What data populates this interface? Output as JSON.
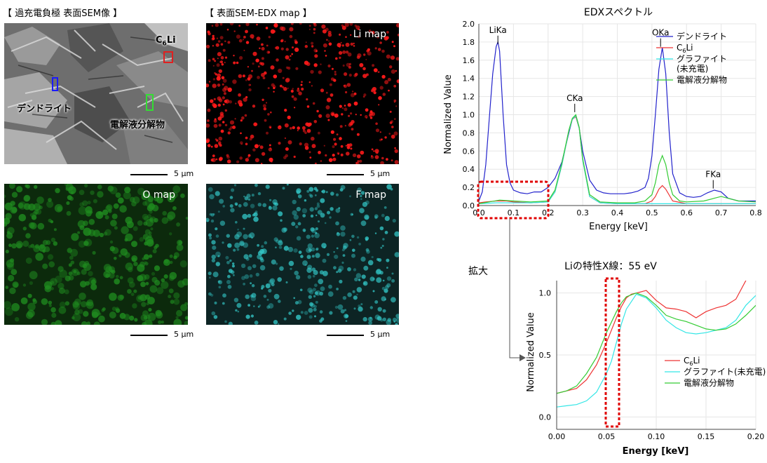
{
  "sem_panel": {
    "heading": "【 過充電負極  表面SEM像 】",
    "labels": {
      "c6li": "C6Li",
      "dendrite": "デンドライト",
      "electrolyte": "電解液分解物"
    },
    "marker_colors": {
      "c6li": "#e02020",
      "dendrite": "#1a1aff",
      "electrolyte": "#33dd33"
    }
  },
  "edx_heading": "【 表面SEM-EDX map 】",
  "maps": {
    "li": {
      "label": "Li map",
      "color": "#ff1a1a"
    },
    "o": {
      "label": "O map",
      "color": "#1f8a1f"
    },
    "f": {
      "label": "F map",
      "color": "#33c8c8"
    }
  },
  "scale_text": "5 µm",
  "magnify_label": "拡大",
  "chart_data": [
    {
      "type": "line",
      "title": "EDXスペクトル",
      "xlabel": "Energy [keV]",
      "ylabel": "Normalized Value",
      "xlim": [
        0.0,
        0.8
      ],
      "ylim": [
        0.0,
        2.0
      ],
      "xticks": [
        "0.0",
        "0.1",
        "0.2",
        "0.3",
        "0.4",
        "0.5",
        "0.6",
        "0.7",
        "0.8"
      ],
      "yticks": [
        "0.0",
        "0.2",
        "0.4",
        "0.6",
        "0.8",
        "1.0",
        "1.2",
        "1.4",
        "1.6",
        "1.8",
        "2.0"
      ],
      "grid": true,
      "legend_position": "top-right",
      "annotations": [
        {
          "text": "LiKa",
          "x": 0.055,
          "y": 1.77
        },
        {
          "text": "CKa",
          "x": 0.277,
          "y": 1.02
        },
        {
          "text": "OKa",
          "x": 0.525,
          "y": 1.74
        },
        {
          "text": "FKa",
          "x": 0.677,
          "y": 0.18
        }
      ],
      "series": [
        {
          "name": "デンドライト",
          "color": "#2222cc",
          "x": [
            0.0,
            0.01,
            0.02,
            0.03,
            0.04,
            0.05,
            0.055,
            0.06,
            0.07,
            0.08,
            0.09,
            0.1,
            0.12,
            0.14,
            0.16,
            0.18,
            0.2,
            0.22,
            0.24,
            0.26,
            0.27,
            0.28,
            0.29,
            0.3,
            0.32,
            0.34,
            0.36,
            0.38,
            0.4,
            0.42,
            0.44,
            0.46,
            0.48,
            0.49,
            0.5,
            0.51,
            0.52,
            0.53,
            0.54,
            0.55,
            0.56,
            0.58,
            0.6,
            0.62,
            0.64,
            0.66,
            0.68,
            0.7,
            0.72,
            0.75,
            0.8
          ],
          "y": [
            0.05,
            0.15,
            0.45,
            0.95,
            1.45,
            1.75,
            1.8,
            1.7,
            1.0,
            0.45,
            0.25,
            0.17,
            0.14,
            0.13,
            0.15,
            0.15,
            0.2,
            0.3,
            0.48,
            0.8,
            0.95,
            0.98,
            0.85,
            0.6,
            0.28,
            0.17,
            0.14,
            0.13,
            0.13,
            0.13,
            0.14,
            0.16,
            0.2,
            0.3,
            0.55,
            1.0,
            1.5,
            1.74,
            1.45,
            0.8,
            0.35,
            0.14,
            0.1,
            0.09,
            0.1,
            0.14,
            0.17,
            0.15,
            0.08,
            0.05,
            0.05
          ]
        },
        {
          "name": "C6Li",
          "color": "#ee3333",
          "x": [
            0.0,
            0.02,
            0.05,
            0.08,
            0.1,
            0.15,
            0.2,
            0.22,
            0.24,
            0.26,
            0.27,
            0.28,
            0.29,
            0.3,
            0.32,
            0.35,
            0.4,
            0.45,
            0.48,
            0.5,
            0.51,
            0.52,
            0.53,
            0.54,
            0.56,
            0.6,
            0.7,
            0.8
          ],
          "y": [
            0.03,
            0.04,
            0.05,
            0.05,
            0.04,
            0.03,
            0.04,
            0.15,
            0.45,
            0.82,
            0.95,
            0.98,
            0.85,
            0.5,
            0.1,
            0.03,
            0.02,
            0.02,
            0.02,
            0.05,
            0.1,
            0.18,
            0.22,
            0.18,
            0.05,
            0.02,
            0.02,
            0.02
          ]
        },
        {
          "name": "グラファイト\n(未充電)",
          "color": "#33e6e6",
          "x": [
            0.0,
            0.05,
            0.1,
            0.15,
            0.2,
            0.22,
            0.24,
            0.26,
            0.27,
            0.28,
            0.29,
            0.3,
            0.32,
            0.35,
            0.4,
            0.5,
            0.6,
            0.7,
            0.8
          ],
          "y": [
            0.02,
            0.03,
            0.03,
            0.03,
            0.04,
            0.15,
            0.45,
            0.82,
            0.95,
            0.99,
            0.85,
            0.5,
            0.1,
            0.03,
            0.02,
            0.02,
            0.02,
            0.02,
            0.02
          ]
        },
        {
          "name": "電解液分解物",
          "color": "#33cc33",
          "x": [
            0.0,
            0.03,
            0.06,
            0.1,
            0.15,
            0.2,
            0.22,
            0.24,
            0.26,
            0.27,
            0.28,
            0.29,
            0.3,
            0.32,
            0.35,
            0.4,
            0.45,
            0.48,
            0.5,
            0.51,
            0.52,
            0.53,
            0.54,
            0.55,
            0.56,
            0.58,
            0.6,
            0.65,
            0.68,
            0.7,
            0.75,
            0.8
          ],
          "y": [
            0.02,
            0.04,
            0.06,
            0.05,
            0.04,
            0.05,
            0.17,
            0.47,
            0.83,
            0.96,
            1.0,
            0.86,
            0.52,
            0.12,
            0.04,
            0.03,
            0.03,
            0.05,
            0.12,
            0.25,
            0.45,
            0.55,
            0.45,
            0.25,
            0.12,
            0.05,
            0.04,
            0.05,
            0.08,
            0.1,
            0.05,
            0.04
          ]
        }
      ]
    },
    {
      "type": "line",
      "title": "Liの特性X線：55 eV",
      "xlabel": "Energy [keV]",
      "ylabel": "Normalized Value",
      "xlim": [
        0.0,
        0.2
      ],
      "ylim": [
        -0.1,
        1.1
      ],
      "xticks": [
        "0.00",
        "0.05",
        "0.10",
        "0.15",
        "0.20"
      ],
      "yticks": [
        "0.0",
        "0.5",
        "1.0"
      ],
      "grid": true,
      "legend_position": "bottom-right",
      "series": [
        {
          "name": "C6Li",
          "color": "#ee3333",
          "x": [
            0.0,
            0.01,
            0.02,
            0.03,
            0.04,
            0.05,
            0.06,
            0.065,
            0.07,
            0.075,
            0.08,
            0.09,
            0.1,
            0.11,
            0.12,
            0.13,
            0.14,
            0.15,
            0.16,
            0.17,
            0.18,
            0.19,
            0.2
          ],
          "y": [
            0.19,
            0.21,
            0.23,
            0.3,
            0.42,
            0.6,
            0.8,
            0.89,
            0.96,
            0.99,
            1.0,
            1.02,
            0.94,
            0.88,
            0.87,
            0.85,
            0.8,
            0.85,
            0.88,
            0.9,
            0.95,
            1.1,
            1.35
          ]
        },
        {
          "name": "グラファイト(未充電)",
          "color": "#33e6e6",
          "x": [
            0.0,
            0.01,
            0.02,
            0.03,
            0.04,
            0.05,
            0.055,
            0.06,
            0.065,
            0.07,
            0.08,
            0.09,
            0.1,
            0.11,
            0.12,
            0.13,
            0.14,
            0.15,
            0.16,
            0.17,
            0.18,
            0.19,
            0.2
          ],
          "y": [
            0.08,
            0.09,
            0.1,
            0.13,
            0.2,
            0.35,
            0.45,
            0.6,
            0.75,
            0.87,
            0.99,
            0.96,
            0.88,
            0.78,
            0.72,
            0.68,
            0.67,
            0.68,
            0.7,
            0.72,
            0.78,
            0.9,
            0.98
          ]
        },
        {
          "name": "電解液分解物",
          "color": "#33cc33",
          "x": [
            0.0,
            0.01,
            0.02,
            0.03,
            0.04,
            0.05,
            0.06,
            0.065,
            0.07,
            0.08,
            0.09,
            0.1,
            0.11,
            0.12,
            0.13,
            0.14,
            0.15,
            0.16,
            0.17,
            0.18,
            0.19,
            0.2
          ],
          "y": [
            0.19,
            0.21,
            0.25,
            0.35,
            0.48,
            0.68,
            0.85,
            0.92,
            0.97,
            1.0,
            0.97,
            0.9,
            0.82,
            0.79,
            0.77,
            0.74,
            0.71,
            0.7,
            0.71,
            0.75,
            0.82,
            0.9
          ]
        }
      ]
    }
  ]
}
